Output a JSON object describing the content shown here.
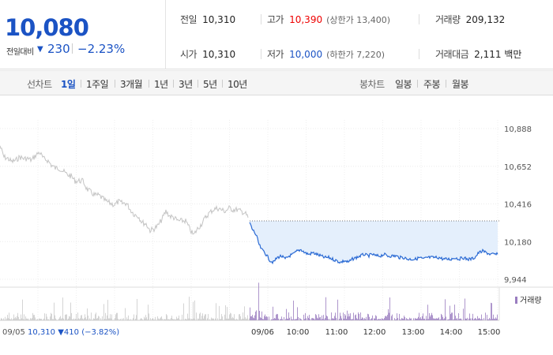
{
  "quote": {
    "price": "10,080",
    "change_label": "전일대비",
    "change_arrow": "▼",
    "change_value": "230",
    "change_pct": "−2.23%",
    "stats": {
      "prev_close": {
        "label": "전일",
        "value": "10,310"
      },
      "open": {
        "label": "시가",
        "value": "10,310"
      },
      "high": {
        "label": "고가",
        "value": "10,390",
        "limit_label": "(상한가 13,400)"
      },
      "low": {
        "label": "저가",
        "value": "10,000",
        "limit_label": "(하한가 7,220)"
      },
      "volume": {
        "label": "거래량",
        "value": "209,132"
      },
      "amount": {
        "label": "거래대금",
        "value": "2,111",
        "unit": "백만"
      }
    },
    "colors": {
      "down": "#1b53c4",
      "up": "#e00000"
    }
  },
  "periods": {
    "line_title": "선차트",
    "line_items": [
      "1일",
      "1주일",
      "3개월",
      "1년",
      "3년",
      "5년",
      "10년"
    ],
    "active": "1일",
    "candle_title": "봉차트",
    "candle_items": [
      "일봉",
      "주봉",
      "월봉"
    ]
  },
  "chart_data": {
    "type": "line",
    "ylim": [
      9944,
      10888
    ],
    "yticks": [
      "10,888",
      "10,652",
      "10,416",
      "10,180",
      "9,944"
    ],
    "reference_line": 10310,
    "prev_day": {
      "date": "09/05",
      "anchor": [
        [
          0,
          10780
        ],
        [
          5,
          10710
        ],
        [
          10,
          10700
        ],
        [
          15,
          10680
        ],
        [
          20,
          10690
        ],
        [
          25,
          10710
        ],
        [
          30,
          10700
        ],
        [
          35,
          10700
        ],
        [
          40,
          10690
        ],
        [
          45,
          10720
        ],
        [
          50,
          10740
        ],
        [
          55,
          10700
        ],
        [
          60,
          10690
        ],
        [
          65,
          10660
        ],
        [
          70,
          10640
        ],
        [
          75,
          10640
        ],
        [
          80,
          10620
        ],
        [
          85,
          10600
        ],
        [
          90,
          10590
        ],
        [
          95,
          10560
        ],
        [
          100,
          10560
        ],
        [
          105,
          10560
        ],
        [
          110,
          10510
        ],
        [
          115,
          10490
        ],
        [
          120,
          10470
        ],
        [
          125,
          10470
        ],
        [
          130,
          10450
        ],
        [
          135,
          10430
        ],
        [
          140,
          10420
        ],
        [
          145,
          10410
        ],
        [
          150,
          10430
        ],
        [
          155,
          10420
        ],
        [
          160,
          10420
        ],
        [
          165,
          10380
        ],
        [
          170,
          10350
        ],
        [
          175,
          10340
        ],
        [
          180,
          10300
        ],
        [
          185,
          10290
        ],
        [
          190,
          10250
        ],
        [
          195,
          10260
        ],
        [
          200,
          10280
        ],
        [
          205,
          10320
        ],
        [
          210,
          10370
        ],
        [
          215,
          10340
        ],
        [
          220,
          10330
        ],
        [
          225,
          10310
        ],
        [
          230,
          10310
        ],
        [
          235,
          10310
        ],
        [
          240,
          10260
        ],
        [
          245,
          10220
        ],
        [
          250,
          10260
        ],
        [
          255,
          10290
        ],
        [
          260,
          10330
        ],
        [
          265,
          10360
        ],
        [
          270,
          10380
        ],
        [
          275,
          10390
        ],
        [
          280,
          10380
        ],
        [
          285,
          10370
        ],
        [
          290,
          10390
        ],
        [
          295,
          10380
        ],
        [
          300,
          10380
        ],
        [
          305,
          10370
        ],
        [
          310,
          10360
        ],
        [
          314,
          10330
        ]
      ],
      "close": "10,310",
      "change_arrow": "▼",
      "change": "410",
      "change_pct": "(−3.82%)"
    },
    "today": {
      "date": "09/06",
      "x_labels": [
        "10:00",
        "11:00",
        "12:00",
        "13:00",
        "14:00",
        "15:00"
      ],
      "anchor": [
        [
          0,
          10300
        ],
        [
          3,
          10260
        ],
        [
          6,
          10240
        ],
        [
          9,
          10210
        ],
        [
          12,
          10160
        ],
        [
          15,
          10130
        ],
        [
          18,
          10120
        ],
        [
          22,
          10090
        ],
        [
          26,
          10060
        ],
        [
          30,
          10050
        ],
        [
          35,
          10080
        ],
        [
          40,
          10090
        ],
        [
          45,
          10070
        ],
        [
          50,
          10090
        ],
        [
          55,
          10100
        ],
        [
          60,
          10120
        ],
        [
          65,
          10130
        ],
        [
          70,
          10110
        ],
        [
          75,
          10100
        ],
        [
          80,
          10110
        ],
        [
          85,
          10100
        ],
        [
          90,
          10090
        ],
        [
          95,
          10080
        ],
        [
          100,
          10080
        ],
        [
          105,
          10070
        ],
        [
          110,
          10060
        ],
        [
          115,
          10050
        ],
        [
          120,
          10060
        ],
        [
          125,
          10050
        ],
        [
          130,
          10070
        ],
        [
          135,
          10080
        ],
        [
          140,
          10090
        ],
        [
          145,
          10100
        ],
        [
          150,
          10090
        ],
        [
          155,
          10100
        ],
        [
          160,
          10090
        ],
        [
          165,
          10090
        ],
        [
          170,
          10100
        ],
        [
          175,
          10090
        ],
        [
          180,
          10090
        ],
        [
          185,
          10090
        ],
        [
          190,
          10080
        ],
        [
          195,
          10080
        ],
        [
          200,
          10070
        ],
        [
          205,
          10070
        ],
        [
          210,
          10070
        ],
        [
          215,
          10080
        ],
        [
          220,
          10070
        ],
        [
          225,
          10080
        ],
        [
          230,
          10080
        ],
        [
          235,
          10080
        ],
        [
          240,
          10080
        ],
        [
          245,
          10070
        ],
        [
          250,
          10070
        ],
        [
          255,
          10070
        ],
        [
          260,
          10080
        ],
        [
          265,
          10070
        ],
        [
          270,
          10080
        ],
        [
          275,
          10070
        ],
        [
          280,
          10070
        ],
        [
          285,
          10080
        ],
        [
          290,
          10110
        ],
        [
          295,
          10120
        ],
        [
          300,
          10110
        ],
        [
          305,
          10100
        ],
        [
          310,
          10100
        ],
        [
          314,
          10100
        ]
      ]
    },
    "volume_legend": "거래량",
    "colors": {
      "prev_line": "#c4c4c4",
      "today_line": "#2a6ad4",
      "fill": "#e4effc",
      "volume": "#9a7dc0"
    }
  }
}
